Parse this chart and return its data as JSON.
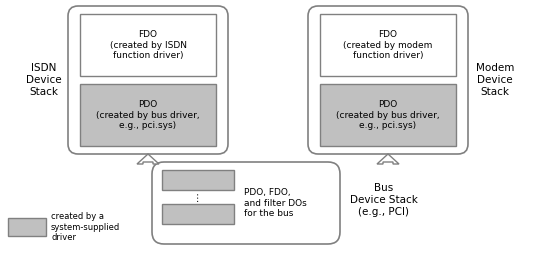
{
  "bg_color": "#ffffff",
  "box_outline": "#808080",
  "gray_fill": "#c0c0c0",
  "white_fill": "#ffffff",
  "figsize": [
    5.54,
    2.62
  ],
  "dpi": 100,
  "isdn_label": "ISDN\nDevice\nStack",
  "modem_label": "Modem\nDevice\nStack",
  "bus_label": "Bus\nDevice Stack\n(e.g., PCI)",
  "fdo_isdn_text": "FDO\n(created by ISDN\nfunction driver)",
  "pdo_isdn_text": "PDO\n(created by bus driver,\ne.g., pci.sys)",
  "fdo_modem_text": "FDO\n(created by modem\nfunction driver)",
  "pdo_modem_text": "PDO\n(created by bus driver,\ne.g., pci.sys)",
  "bus_stack_text": "PDO, FDO,\nand filter DOs\nfor the bus",
  "legend_text": "created by a\nsystem-supplied\ndriver",
  "font_size": 6.5,
  "label_font_size": 7.5
}
